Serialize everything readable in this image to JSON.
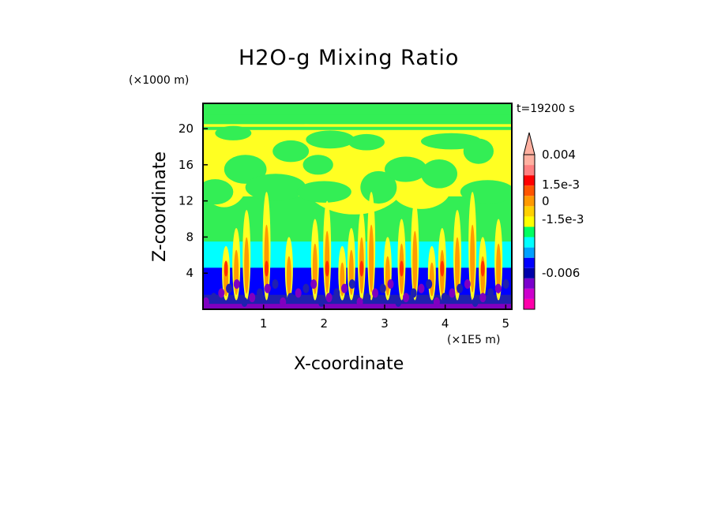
{
  "chart_data": {
    "type": "heatmap",
    "title": "H2O-g Mixing Ratio",
    "xlabel": "X-coordinate",
    "ylabel": "Z-coordinate",
    "x_unit": "(×1E5 m)",
    "y_unit": "(×1000 m)",
    "time_label": "t=19200 s",
    "xlim": [
      0,
      5.1
    ],
    "ylim": [
      0,
      22.8
    ],
    "x_ticks": [
      "1",
      "2",
      "3",
      "4",
      "5"
    ],
    "x_tick_values": [
      1,
      2,
      3,
      4,
      5
    ],
    "y_ticks": [
      "4",
      "8",
      "12",
      "16",
      "20"
    ],
    "y_tick_values": [
      4,
      8,
      12,
      16,
      20
    ],
    "colorbar": {
      "labels": [
        "0.004",
        "1.5e-3",
        "0",
        "-1.5e-3",
        "-0.006"
      ],
      "colors": [
        "#ff00aa",
        "#cc00cc",
        "#7a00cc",
        "#0000aa",
        "#0000ff",
        "#00a0ff",
        "#00ffff",
        "#00ff60",
        "#ffff00",
        "#ffd000",
        "#ff9900",
        "#ff5500",
        "#ff0000",
        "#ff8080",
        "#ffb0a0"
      ]
    },
    "field_colors": {
      "green": "#33ee55",
      "yellow": "#ffff22",
      "cyan": "#00ffff",
      "blue": "#0000ff",
      "darkblue": "#2020b0",
      "purple": "#8000c0",
      "orange": "#ff9a00",
      "red": "#ff3000"
    }
  }
}
